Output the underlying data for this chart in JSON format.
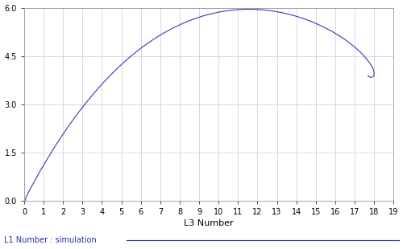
{
  "xlabel": "L3 Number",
  "ylabel": "L1 Number : simulation",
  "xlim": [
    0,
    19
  ],
  "ylim": [
    0,
    6
  ],
  "xticks": [
    0,
    1,
    2,
    3,
    4,
    5,
    6,
    7,
    8,
    9,
    10,
    11,
    12,
    13,
    14,
    15,
    16,
    17,
    18,
    19
  ],
  "yticks": [
    0,
    1.5,
    3,
    4.5,
    6
  ],
  "line_color": "#2233aa",
  "line_width": 0.75,
  "bg_color": "#ffffff",
  "grid_color": "#c8c8dc",
  "figsize": [
    5.0,
    3.1
  ],
  "dpi": 100,
  "legend_label": "L1 Number : simulation"
}
